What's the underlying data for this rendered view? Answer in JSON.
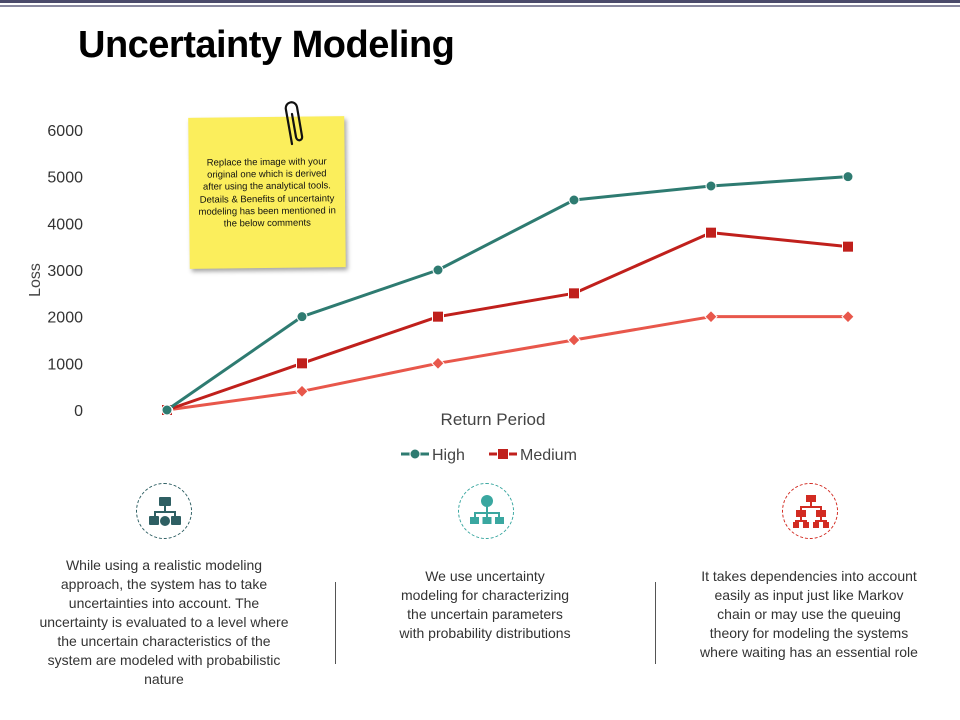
{
  "slide": {
    "title": "Uncertainty Modeling"
  },
  "sticky_note": {
    "text": "Replace the image with your original one which is derived after using the analytical tools. Details & Benefits of uncertainty modeling has been mentioned in the below comments"
  },
  "chart_data": {
    "type": "line",
    "xlabel": "Return Period",
    "ylabel": "Loss",
    "ylim": [
      0,
      6000
    ],
    "yticks": [
      0,
      1000,
      2000,
      3000,
      4000,
      5000,
      6000
    ],
    "x": [
      1,
      2,
      3,
      4,
      5,
      6
    ],
    "grid": false,
    "legend_position": "bottom",
    "series": [
      {
        "name": "High",
        "color": "#2e7b71",
        "marker": "circle",
        "values": [
          0,
          2000,
          3000,
          4500,
          4800,
          5000
        ]
      },
      {
        "name": "Medium",
        "color": "#c0201c",
        "marker": "square",
        "values": [
          0,
          1000,
          2000,
          2500,
          3800,
          3500
        ]
      },
      {
        "name": "",
        "color": "#e8574b",
        "marker": "diamond",
        "values": [
          0,
          400,
          1000,
          1500,
          2000,
          2000
        ]
      }
    ]
  },
  "features": [
    {
      "icon": "hierarchy-icon",
      "color": "#2e5f63",
      "text": "While using a realistic modeling approach, the system has to take uncertainties into account. The uncertainty is evaluated to a level where the uncertain characteristics of the system are modeled with probabilistic nature"
    },
    {
      "icon": "org-chart-icon",
      "color": "#3aa7a0",
      "text": "We use uncertainty modeling for characterizing the uncertain parameters with probability distributions"
    },
    {
      "icon": "network-icon",
      "color": "#d22b22",
      "text": "It takes dependencies into account easily as input just like Markov chain or may use the queuing theory for modeling the systems where waiting has an essential role"
    }
  ]
}
